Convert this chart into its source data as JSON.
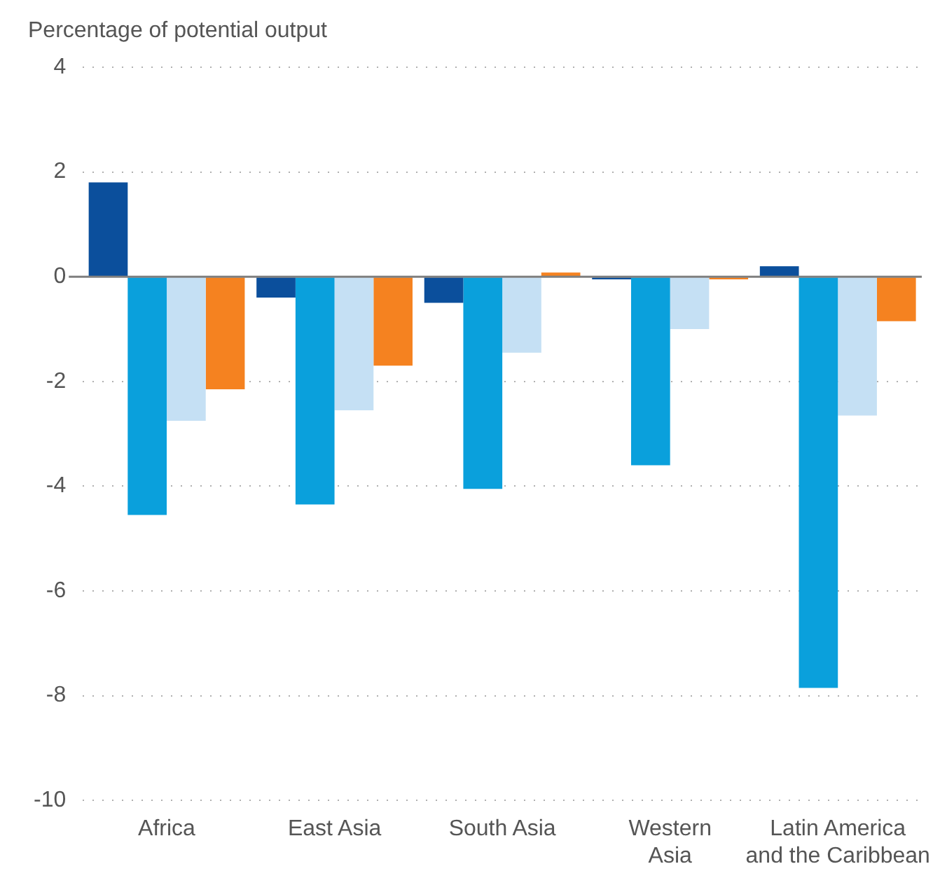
{
  "chart_data": {
    "type": "bar",
    "ylabel": "Percentage of potential output",
    "categories": [
      "Africa",
      "East Asia",
      "South Asia",
      "Western Asia",
      "Latin America and the Caribbean"
    ],
    "series": [
      {
        "color": "#0b4f9c",
        "values": [
          1.8,
          -0.4,
          -0.5,
          -0.05,
          0.2
        ]
      },
      {
        "color": "#0aa0dc",
        "values": [
          -4.55,
          -4.35,
          -4.05,
          -3.6,
          -7.85
        ]
      },
      {
        "color": "#c5e0f4",
        "values": [
          -2.75,
          -2.55,
          -1.45,
          -1.0,
          -2.65
        ]
      },
      {
        "color": "#f58220",
        "values": [
          -2.15,
          -1.7,
          0.08,
          -0.05,
          -0.85
        ]
      }
    ],
    "ylim": [
      -10,
      4
    ],
    "yticks": [
      -10,
      -8,
      -6,
      -4,
      -2,
      0,
      2,
      4
    ],
    "grid": "y",
    "legend": false
  }
}
